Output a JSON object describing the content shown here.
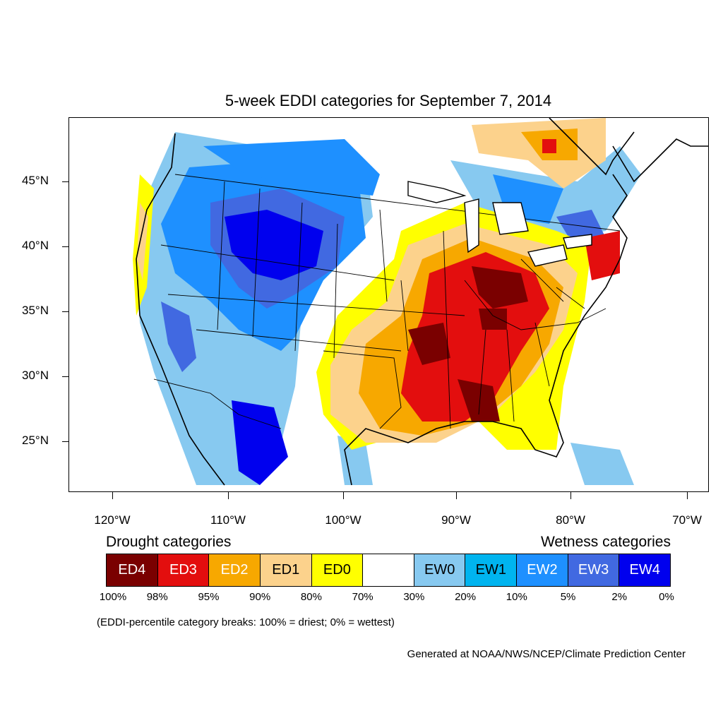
{
  "title": "5-week EDDI categories for September 7, 2014",
  "map": {
    "lat_labels": [
      {
        "text": "45°N",
        "lat": 45
      },
      {
        "text": "40°N",
        "lat": 40
      },
      {
        "text": "35°N",
        "lat": 35
      },
      {
        "text": "30°N",
        "lat": 30
      },
      {
        "text": "25°N",
        "lat": 25
      }
    ],
    "lon_labels": [
      {
        "text": "120°W",
        "lon": -120
      },
      {
        "text": "110°W",
        "lon": -110
      },
      {
        "text": "100°W",
        "lon": -100
      },
      {
        "text": "90°W",
        "lon": -90
      },
      {
        "text": "80°W",
        "lon": -80
      },
      {
        "text": "70°W",
        "lon": -70
      }
    ]
  },
  "legend": {
    "drought_heading": "Drought categories",
    "wetness_heading": "Wetness categories",
    "categories": [
      {
        "label": "ED4",
        "color": "#7a0000",
        "text_color": "#ffffff"
      },
      {
        "label": "ED3",
        "color": "#e30e0e",
        "text_color": "#ffffff"
      },
      {
        "label": "ED2",
        "color": "#f7a800",
        "text_color": "#ffffff"
      },
      {
        "label": "ED1",
        "color": "#fcd28c",
        "text_color": "#000000"
      },
      {
        "label": "ED0",
        "color": "#ffff00",
        "text_color": "#000000"
      },
      {
        "label": "",
        "color": "#ffffff",
        "text_color": "#000000"
      },
      {
        "label": "EW0",
        "color": "#87c9f0",
        "text_color": "#000000"
      },
      {
        "label": "EW1",
        "color": "#00b4ef",
        "text_color": "#000000"
      },
      {
        "label": "EW2",
        "color": "#1e90ff",
        "text_color": "#ffffff"
      },
      {
        "label": "EW3",
        "color": "#4169e1",
        "text_color": "#ffffff"
      },
      {
        "label": "EW4",
        "color": "#0000ee",
        "text_color": "#ffffff"
      }
    ],
    "breaks": [
      "100%",
      "98%",
      "95%",
      "90%",
      "80%",
      "70%",
      "30%",
      "20%",
      "10%",
      "5%",
      "2%",
      "0%"
    ]
  },
  "note": "(EDDI-percentile category breaks: 100% = driest; 0% = wettest)",
  "credit": "Generated at NOAA/NWS/NCEP/Climate Prediction Center"
}
